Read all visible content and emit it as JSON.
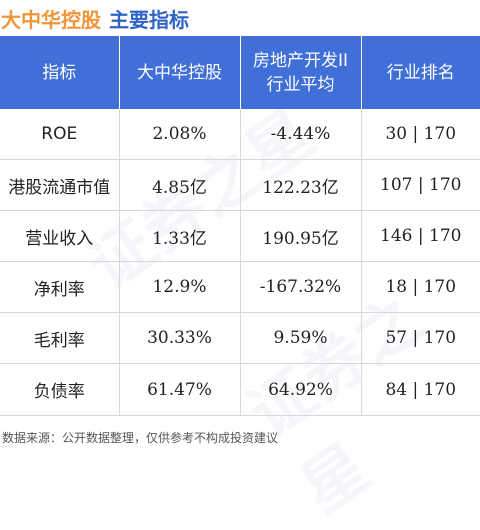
{
  "title": {
    "company": "大中华控股",
    "section": "主要指标"
  },
  "table": {
    "headers": [
      "指标",
      "大中华控股",
      "房地产开发II\n行业平均",
      "行业排名"
    ],
    "rows": [
      {
        "name": "ROE",
        "company": "2.08%",
        "industry": "-4.44%",
        "rank": "30 | 170"
      },
      {
        "name": "港股流通市值",
        "company": "4.85亿",
        "industry": "122.23亿",
        "rank": "107 | 170"
      },
      {
        "name": "营业收入",
        "company": "1.33亿",
        "industry": "190.95亿",
        "rank": "146 | 170"
      },
      {
        "name": "净利率",
        "company": "12.9%",
        "industry": "-167.32%",
        "rank": "18 | 170"
      },
      {
        "name": "毛利率",
        "company": "30.33%",
        "industry": "9.59%",
        "rank": "57 | 170"
      },
      {
        "name": "负债率",
        "company": "61.47%",
        "industry": "64.92%",
        "rank": "84 | 170"
      }
    ]
  },
  "footer": "数据来源：公开数据整理，仅供参考不构成投资建议",
  "watermark": "证券之星"
}
